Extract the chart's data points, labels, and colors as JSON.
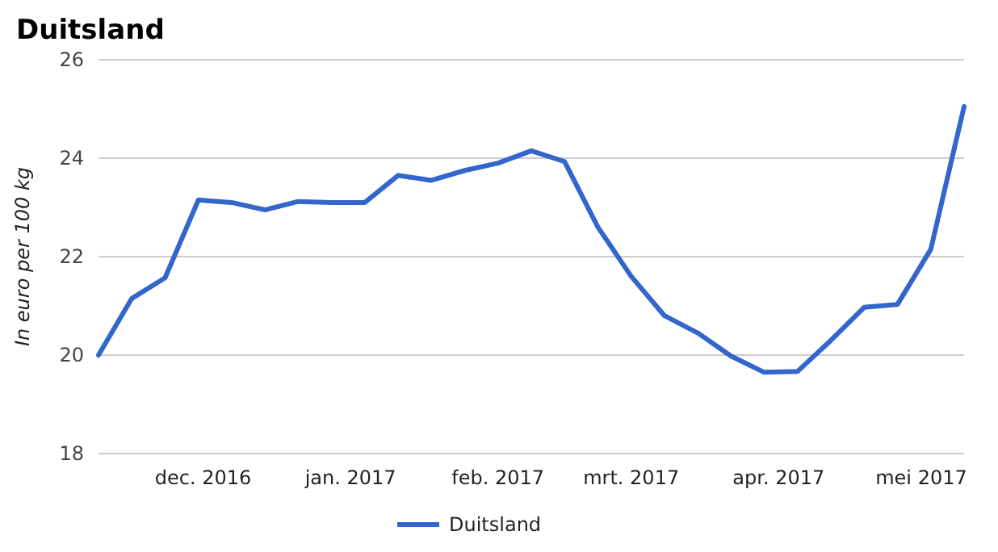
{
  "chart_data": {
    "type": "line",
    "title": "Duitsland",
    "ylabel": "In euro per 100 kg",
    "x": [
      "2016-11-09",
      "2016-11-16",
      "2016-11-23",
      "2016-11-30",
      "2016-12-07",
      "2016-12-14",
      "2016-12-21",
      "2016-12-28",
      "2017-01-04",
      "2017-01-11",
      "2017-01-18",
      "2017-01-25",
      "2017-02-01",
      "2017-02-08",
      "2017-02-15",
      "2017-02-22",
      "2017-03-01",
      "2017-03-08",
      "2017-03-15",
      "2017-03-22",
      "2017-03-29",
      "2017-04-05",
      "2017-04-12",
      "2017-04-19",
      "2017-04-26",
      "2017-05-03",
      "2017-05-10"
    ],
    "series": [
      {
        "name": "Duitsland",
        "color": "#3366cc",
        "values": [
          20.0,
          21.15,
          21.57,
          23.15,
          23.1,
          22.95,
          23.12,
          23.1,
          23.1,
          23.65,
          23.55,
          23.75,
          23.9,
          24.15,
          23.93,
          22.6,
          21.6,
          20.8,
          20.45,
          19.98,
          19.65,
          19.67,
          20.3,
          20.97,
          21.03,
          22.15,
          25.05
        ]
      }
    ],
    "xlim": [
      "2016-11-09",
      "2017-05-10"
    ],
    "xticks": [
      {
        "value": "2016-12-01",
        "label": "dec. 2016"
      },
      {
        "value": "2017-01-01",
        "label": "jan. 2017"
      },
      {
        "value": "2017-02-01",
        "label": "feb. 2017"
      },
      {
        "value": "2017-03-01",
        "label": "mrt. 2017"
      },
      {
        "value": "2017-04-01",
        "label": "apr. 2017"
      },
      {
        "value": "2017-05-01",
        "label": "mei 2017"
      }
    ],
    "ylim": [
      18,
      26
    ],
    "yticks": [
      18,
      20,
      22,
      24,
      26
    ],
    "grid": "y",
    "legend": "bottom",
    "marker": "none",
    "line_style": "solid"
  }
}
